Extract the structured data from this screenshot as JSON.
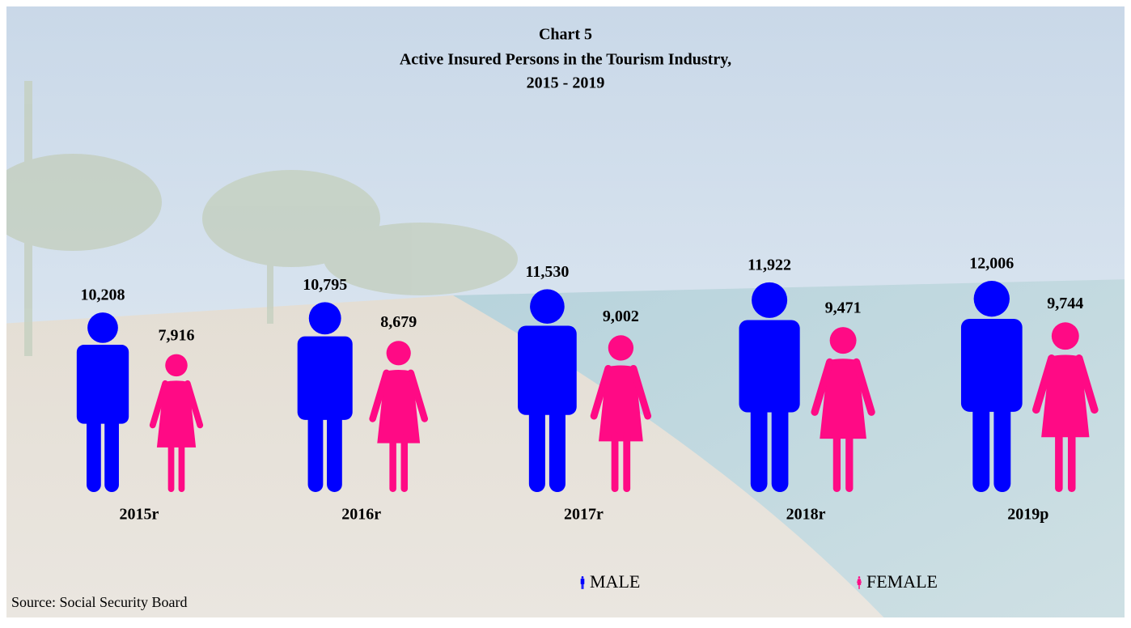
{
  "chart_data": {
    "type": "pictograph",
    "title": "Chart 5",
    "subtitle": [
      "Active Insured Persons in the Tourism Industry,",
      "2015 - 2019"
    ],
    "categories": [
      "2015r",
      "2016r",
      "2017r",
      "2018r",
      "2019p"
    ],
    "series": [
      {
        "name": "MALE",
        "color": "#0000ff",
        "values": [
          10208,
          10795,
          11530,
          11922,
          12006
        ],
        "value_labels": [
          "10,208",
          "10,795",
          "11,530",
          "11,922",
          "12,006"
        ]
      },
      {
        "name": "FEMALE",
        "color": "#ff0a85",
        "values": [
          7916,
          8679,
          9002,
          9471,
          9744
        ],
        "value_labels": [
          "7,916",
          "8,679",
          "9,002",
          "9,471",
          "9,744"
        ]
      }
    ],
    "source": "Source: Social Security Board"
  }
}
